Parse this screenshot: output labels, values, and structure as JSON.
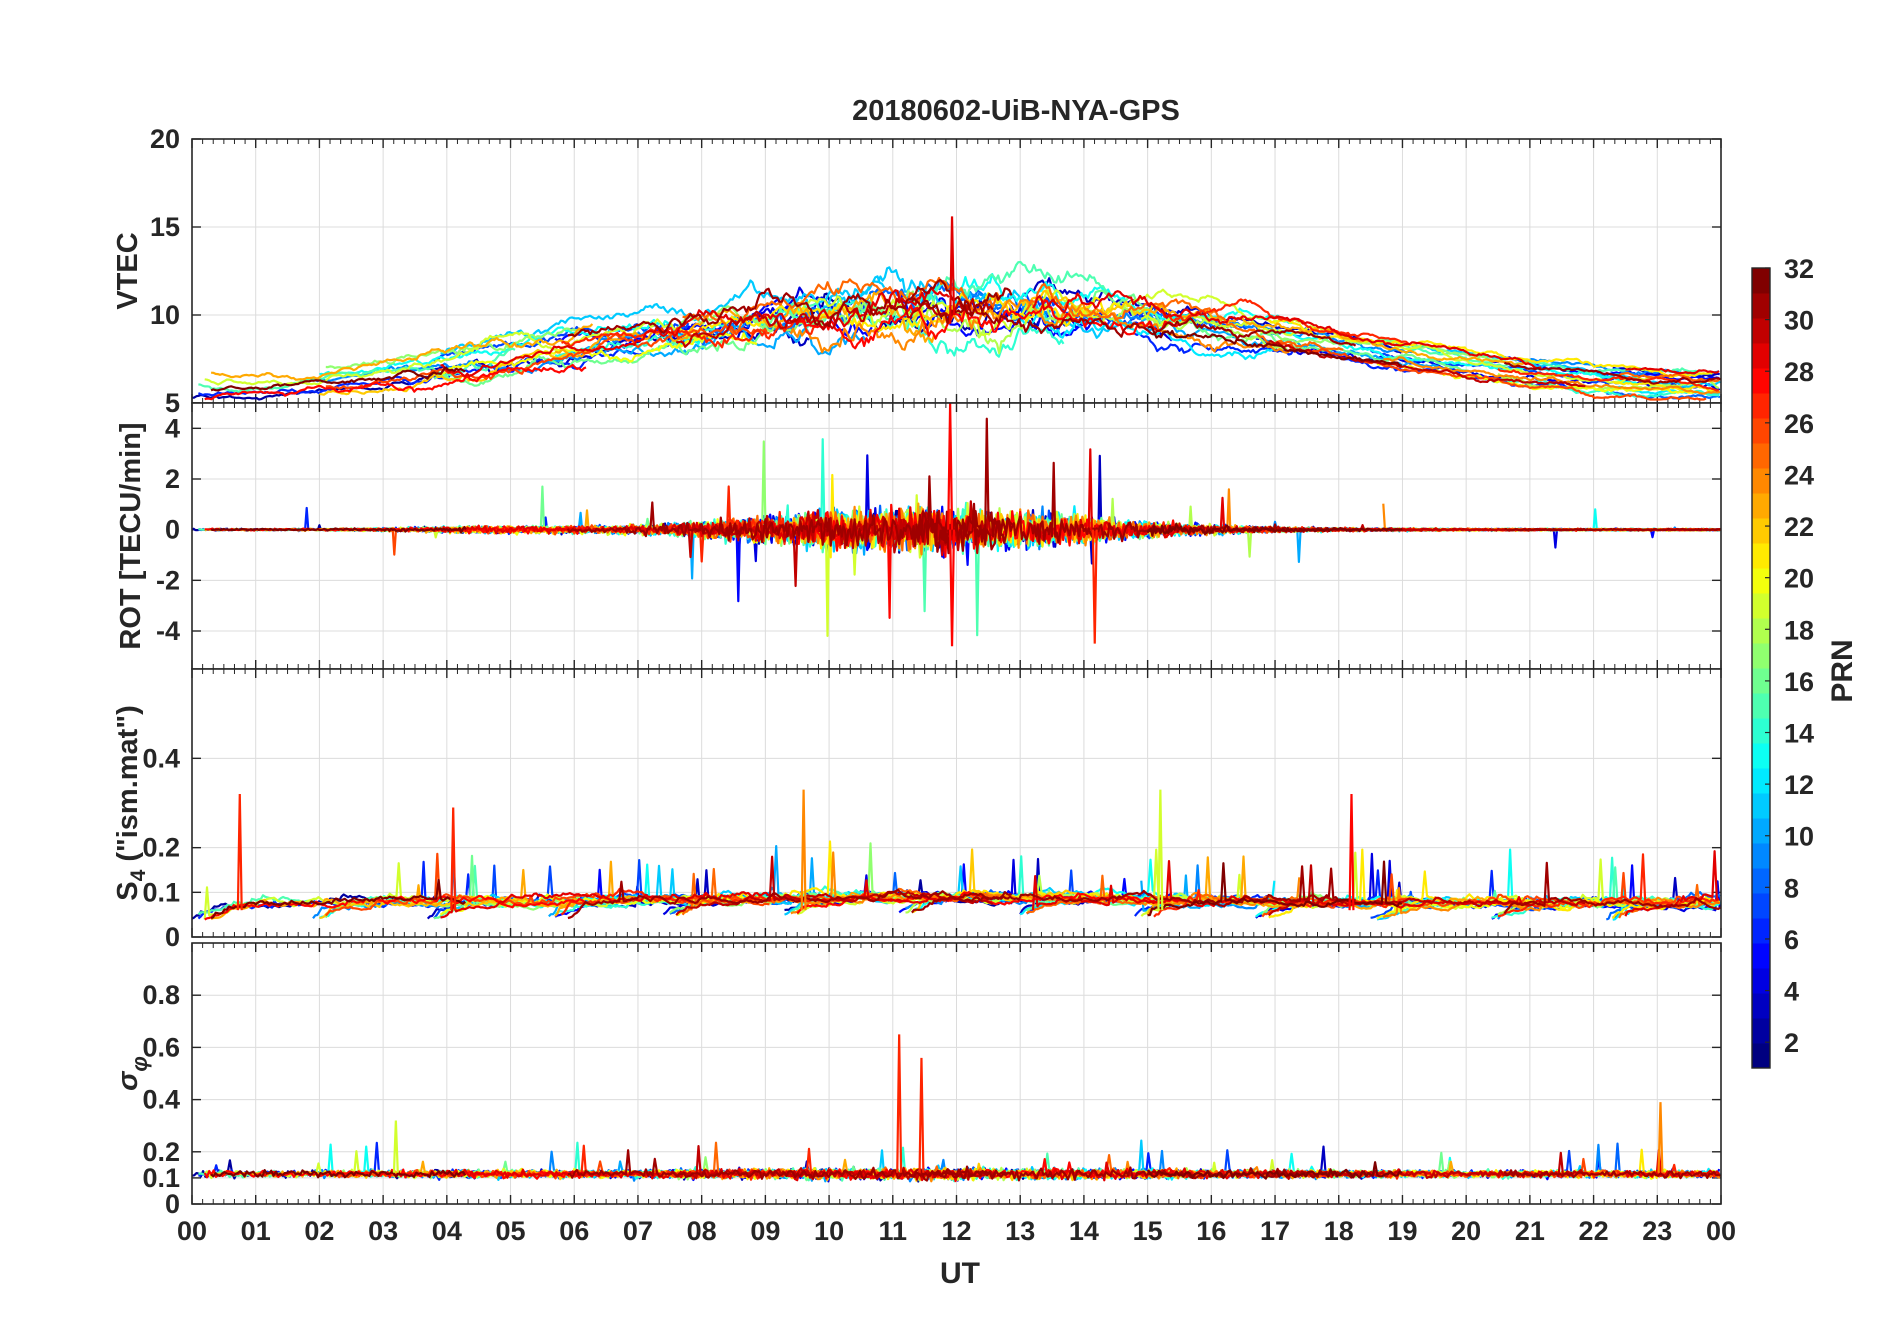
{
  "title": "20180602-UiB-NYA-GPS",
  "xlabel": "UT",
  "colorbar": {
    "label": "PRN",
    "min": 1,
    "max": 32,
    "ticks": [
      "2",
      "4",
      "6",
      "8",
      "10",
      "12",
      "14",
      "16",
      "18",
      "20",
      "22",
      "24",
      "26",
      "28",
      "30",
      "32"
    ],
    "colormap": "jet"
  },
  "chart_data": [
    {
      "type": "line",
      "panel": "vtec",
      "ylabel": "VTEC",
      "ylim": [
        5,
        20
      ],
      "yticks": [
        "5",
        "10",
        "15",
        "20"
      ],
      "grid": true,
      "x_range_hours": [
        0,
        24
      ],
      "xticks": [
        "00",
        "01",
        "02",
        "03",
        "04",
        "05",
        "06",
        "07",
        "08",
        "09",
        "10",
        "11",
        "12",
        "13",
        "14",
        "15",
        "16",
        "17",
        "18",
        "19",
        "20",
        "21",
        "22",
        "23",
        "00"
      ],
      "series_note": "one trace per PRN; coloured by PRN",
      "summary": {
        "typical_min": 6,
        "typical_max": 12,
        "peak_value": 15.6,
        "peak_time_ut": "11:56"
      }
    },
    {
      "type": "line",
      "panel": "rot",
      "ylabel": "ROT [TECU/min]",
      "ylim": [
        -5.5,
        5
      ],
      "yticks": [
        "-4",
        "-2",
        "0",
        "2",
        "4"
      ],
      "grid": true,
      "x_range_hours": [
        0,
        24
      ],
      "summary": {
        "max": 5.0,
        "max_time_ut": "11:54",
        "min": -4.6,
        "min_time_ut": "11:56",
        "spike2_min": -4.5,
        "spike2_time_ut": "14:10"
      }
    },
    {
      "type": "line",
      "panel": "s4",
      "ylabel": "S4 (\"ism.mat\")",
      "ylim": [
        0,
        0.6
      ],
      "yticks": [
        "0",
        "0.1",
        "0.2",
        "0.4"
      ],
      "grid": true,
      "x_range_hours": [
        0,
        24
      ],
      "summary": {
        "baseline": 0.05,
        "peaks": [
          [
            0.75,
            0.32
          ],
          [
            4.1,
            0.29
          ],
          [
            9.6,
            0.33
          ],
          [
            15.2,
            0.33
          ],
          [
            18.2,
            0.32
          ]
        ]
      }
    },
    {
      "type": "line",
      "panel": "sigma_phi",
      "ylabel": "σ_φ",
      "ylim": [
        0,
        1
      ],
      "yticks": [
        "0",
        "0.1",
        "0.2",
        "0.4",
        "0.6",
        "0.8"
      ],
      "grid": true,
      "x_range_hours": [
        0,
        24
      ],
      "summary": {
        "baseline": 0.12,
        "peaks": [
          [
            11.1,
            0.65
          ],
          [
            11.45,
            0.56
          ],
          [
            23.05,
            0.39
          ],
          [
            3.2,
            0.32
          ]
        ]
      }
    }
  ],
  "colors": {
    "axis": "#262626",
    "grid": "#dcdcdc",
    "background": "#ffffff"
  }
}
